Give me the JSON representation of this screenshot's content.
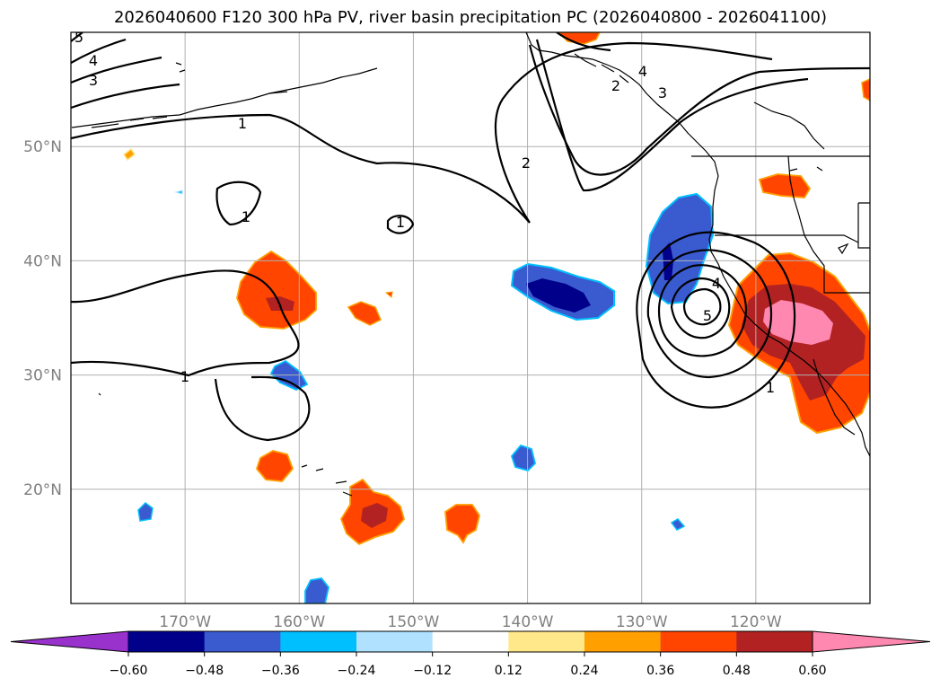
{
  "chart_data": {
    "type": "contour-map",
    "title": "2026040600 F120 300 hPa PV, river basin precipitation PC (2026040800 - 2026041100)",
    "x_axis": {
      "ticks": [
        -170,
        -160,
        -150,
        -140,
        -130,
        -120
      ],
      "tick_labels": [
        "170°W",
        "160°W",
        "150°W",
        "140°W",
        "130°W",
        "120°W"
      ],
      "range": [
        -180,
        -110
      ]
    },
    "y_axis": {
      "ticks": [
        20,
        30,
        40,
        50
      ],
      "tick_labels": [
        "20°N",
        "30°N",
        "40°N",
        "50°N"
      ],
      "range": [
        10,
        60
      ]
    },
    "grid": true,
    "colorbar": {
      "orientation": "horizontal",
      "extend": "both",
      "levels": [
        -0.6,
        -0.48,
        -0.36,
        -0.24,
        -0.12,
        0.12,
        0.24,
        0.36,
        0.48,
        0.6
      ],
      "tick_labels": [
        "−0.60",
        "−0.48",
        "−0.36",
        "−0.24",
        "−0.12",
        "0.12",
        "0.24",
        "0.36",
        "0.48",
        "0.60"
      ],
      "colors": [
        "#9932cc",
        "#00008b",
        "#3a5bd0",
        "#00bfff",
        "#b0e2ff",
        "#ffffff",
        "#ffe88a",
        "#ffa000",
        "#ff4500",
        "#b22222",
        "#ff88b0"
      ]
    },
    "pv_contour_labels": [
      "1",
      "1",
      "1",
      "1",
      "1",
      "2",
      "2",
      "3",
      "3",
      "4",
      "4",
      "4",
      "5",
      "5"
    ],
    "precip_features": [
      {
        "lon": -162.5,
        "lat": 37.0,
        "value": 0.5,
        "sign": "positive"
      },
      {
        "lon": -154.0,
        "lat": 35.5,
        "value": 0.4,
        "sign": "positive"
      },
      {
        "lon": -162.0,
        "lat": 22.0,
        "value": 0.4,
        "sign": "positive"
      },
      {
        "lon": -155.5,
        "lat": 18.0,
        "value": 0.5,
        "sign": "positive"
      },
      {
        "lon": -145.0,
        "lat": 17.5,
        "value": 0.4,
        "sign": "positive"
      },
      {
        "lon": -118.0,
        "lat": 34.0,
        "value": 0.6,
        "sign": "positive"
      },
      {
        "lon": -118.0,
        "lat": 46.5,
        "value": 0.4,
        "sign": "positive"
      },
      {
        "lon": -139.0,
        "lat": 37.5,
        "value": -0.5,
        "sign": "negative"
      },
      {
        "lon": -127.0,
        "lat": 40.0,
        "value": -0.5,
        "sign": "negative"
      },
      {
        "lon": -160.5,
        "lat": 30.0,
        "value": -0.36,
        "sign": "negative"
      },
      {
        "lon": -140.5,
        "lat": 22.5,
        "value": -0.36,
        "sign": "negative"
      },
      {
        "lon": -158.5,
        "lat": 11.0,
        "value": -0.36,
        "sign": "negative"
      },
      {
        "lon": -174.0,
        "lat": 18.0,
        "value": -0.36,
        "sign": "negative"
      }
    ]
  }
}
